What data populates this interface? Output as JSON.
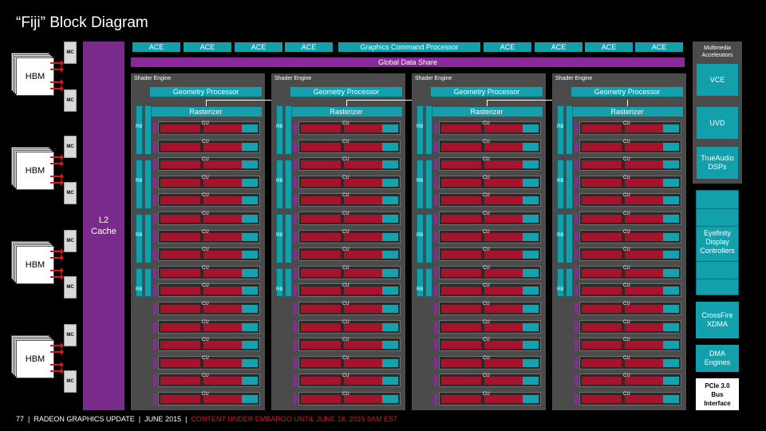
{
  "title": "“Fiji” Block Diagram",
  "hbm_label": "HBM",
  "mc_label": "MC",
  "l2_cache": "L2\nCache",
  "top_row": [
    "ACE",
    "ACE",
    "ACE",
    "ACE",
    "Graphics Command Processor",
    "ACE",
    "ACE",
    "ACE",
    "ACE"
  ],
  "global_data_share": "Global Data Share",
  "shader_engine_label": "Shader Engine",
  "geometry_processor": "Geometry Processor",
  "rasterizer": "Rasterizer",
  "cu_label": "CU",
  "rb_label": "RB",
  "multimedia": {
    "header": "Multimedia\nAccelerators",
    "blocks": [
      "VCE",
      "UVD",
      "TrueAudio\nDSPs"
    ]
  },
  "eyefinity": "Eyefinity\nDisplay\nControllers",
  "crossfire": "CrossFire\nXDMA",
  "dma": "DMA\nEngines",
  "pcie": "PCIe 3.0\nBus\nInterface",
  "footer": {
    "page": "77",
    "section": "RADEON GRAPHICS UPDATE",
    "date": "JUNE 2015",
    "embargo": "CONTENT UNDER EMBARGO UNTIL JUNE 18, 2015 8AM EST"
  }
}
